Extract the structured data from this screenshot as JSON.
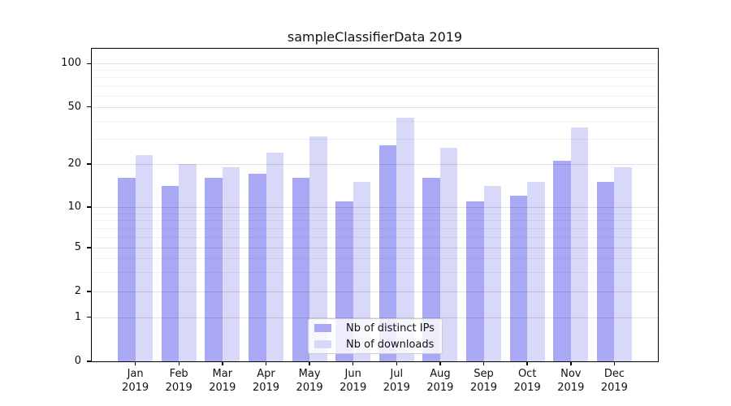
{
  "title": "sampleClassifierData 2019",
  "chart_data": {
    "type": "bar",
    "title": "sampleClassifierData 2019",
    "categories": [
      "Jan",
      "Feb",
      "Mar",
      "Apr",
      "May",
      "Jun",
      "Jul",
      "Aug",
      "Sep",
      "Oct",
      "Nov",
      "Dec"
    ],
    "category_year": "2019",
    "series": [
      {
        "name": "Nb of distinct IPs",
        "color": "#a8a8f5",
        "values": [
          16,
          14,
          16,
          17,
          16,
          11,
          27,
          16,
          11,
          12,
          21,
          15
        ]
      },
      {
        "name": "Nb of downloads",
        "color": "#d8d8f9",
        "values": [
          23,
          20,
          19,
          24,
          31,
          15,
          42,
          26,
          14,
          15,
          36,
          19
        ]
      }
    ],
    "y_axis": {
      "scale": "log-like (symlog, includes 0)",
      "major_ticks": [
        0,
        1,
        2,
        5,
        10,
        20,
        50,
        100
      ],
      "minor_gridlines": [
        3,
        4,
        6,
        7,
        8,
        9,
        30,
        40,
        60,
        70,
        80,
        90
      ],
      "ylim": [
        0,
        127
      ]
    },
    "legend": {
      "position": "lower center",
      "entries": [
        "Nb of distinct IPs",
        "Nb of downloads"
      ]
    },
    "grid": true
  },
  "style": {
    "grid_major": "rgba(0,0,0,0.12)",
    "grid_minor": "rgba(0,0,0,0.05)",
    "axis_color": "#000000",
    "text_color": "#111111",
    "legend_bg": "rgba(255,255,255,0.8)",
    "legend_border": "#cccccc"
  }
}
